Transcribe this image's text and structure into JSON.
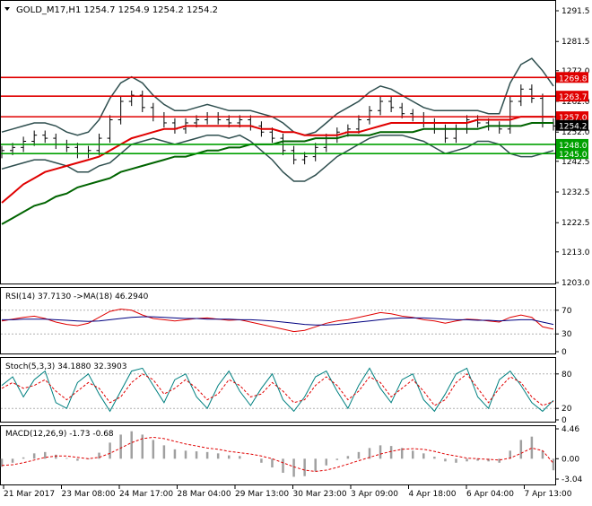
{
  "header": {
    "symbol_line": "GOLD_M17,H1  1254.7 1254.9 1254.2 1254.2"
  },
  "colors": {
    "price_bars": "#000000",
    "bollinger": "#2f4f4f",
    "ma_red": "#e00000",
    "ma_green": "#006400",
    "level_red": "#e00000",
    "level_green": "#00a000",
    "rsi_line": "#e00000",
    "rsi_ma": "#000080",
    "stoch_main": "#008080",
    "stoch_signal": "#e00000",
    "macd_hist": "#a0a0a0",
    "macd_signal": "#e00000"
  },
  "chart_data": [
    {
      "type": "line",
      "name": "main",
      "y_ticks": [
        "1291.5",
        "1281.5",
        "1272.0",
        "1262.0",
        "1252.0",
        "1242.5",
        "1232.5",
        "1222.5",
        "1213.0",
        "1203.0"
      ],
      "ylim": [
        1203.0,
        1291.5
      ],
      "x_labels": [
        "21 Mar 2017",
        "23 Mar 08:00",
        "24 Mar 17:00",
        "28 Mar 04:00",
        "29 Mar 13:00",
        "30 Mar 23:00",
        "3 Apr 09:00",
        "4 Apr 18:00",
        "6 Apr 04:00",
        "7 Apr 13:00"
      ],
      "levels": [
        {
          "label": "1269.8",
          "value": 1269.8,
          "color": "red"
        },
        {
          "label": "1263.7",
          "value": 1263.7,
          "color": "red"
        },
        {
          "label": "1257.0",
          "value": 1257.0,
          "color": "red"
        },
        {
          "label": "1248.0",
          "value": 1248.0,
          "color": "green"
        },
        {
          "label": "1245.0",
          "value": 1245.0,
          "color": "green"
        }
      ],
      "current_price": {
        "label": "1254.2",
        "value": 1254.2
      },
      "price_close": [
        1246,
        1247,
        1249,
        1251,
        1250,
        1248,
        1247,
        1245,
        1246,
        1250,
        1256,
        1262,
        1264,
        1260,
        1257,
        1255,
        1253,
        1255,
        1256,
        1257,
        1256,
        1255,
        1256,
        1254,
        1252,
        1250,
        1246,
        1243,
        1244,
        1247,
        1250,
        1252,
        1253,
        1256,
        1259,
        1262,
        1260,
        1258,
        1257,
        1255,
        1253,
        1250,
        1253,
        1256,
        1255,
        1254,
        1253,
        1262,
        1266,
        1263,
        1255,
        1254
      ],
      "ma_red": [
        1229,
        1232,
        1235,
        1237,
        1239,
        1240,
        1241,
        1242,
        1243,
        1244,
        1246,
        1248,
        1250,
        1251,
        1252,
        1253,
        1253,
        1254,
        1254,
        1254,
        1254,
        1254,
        1254,
        1254,
        1253,
        1253,
        1252,
        1252,
        1251,
        1251,
        1251,
        1251,
        1252,
        1252,
        1253,
        1254,
        1255,
        1255,
        1255,
        1255,
        1255,
        1255,
        1255,
        1255,
        1256,
        1256,
        1256,
        1256,
        1257,
        1257,
        1257,
        1257
      ],
      "ma_green": [
        1222,
        1224,
        1226,
        1228,
        1229,
        1231,
        1232,
        1234,
        1235,
        1236,
        1237,
        1239,
        1240,
        1241,
        1242,
        1243,
        1244,
        1244,
        1245,
        1246,
        1246,
        1247,
        1247,
        1248,
        1248,
        1248,
        1249,
        1249,
        1249,
        1250,
        1250,
        1250,
        1251,
        1251,
        1251,
        1252,
        1252,
        1252,
        1252,
        1253,
        1253,
        1253,
        1253,
        1253,
        1253,
        1254,
        1254,
        1254,
        1254,
        1255,
        1255,
        1255
      ],
      "bb_upper": [
        1252,
        1253,
        1254,
        1255,
        1255,
        1254,
        1252,
        1251,
        1252,
        1256,
        1263,
        1268,
        1270,
        1268,
        1264,
        1261,
        1259,
        1259,
        1260,
        1261,
        1260,
        1259,
        1259,
        1259,
        1258,
        1257,
        1255,
        1252,
        1251,
        1252,
        1255,
        1258,
        1260,
        1262,
        1265,
        1267,
        1266,
        1264,
        1262,
        1260,
        1259,
        1259,
        1259,
        1259,
        1259,
        1258,
        1258,
        1268,
        1274,
        1276,
        1272,
        1267
      ],
      "bb_lower": [
        1240,
        1241,
        1242,
        1243,
        1243,
        1242,
        1241,
        1239,
        1239,
        1241,
        1242,
        1245,
        1248,
        1249,
        1250,
        1249,
        1248,
        1249,
        1250,
        1251,
        1251,
        1250,
        1251,
        1249,
        1246,
        1243,
        1239,
        1236,
        1236,
        1238,
        1241,
        1244,
        1246,
        1248,
        1250,
        1251,
        1251,
        1251,
        1250,
        1249,
        1247,
        1245,
        1246,
        1247,
        1249,
        1249,
        1248,
        1245,
        1244,
        1244,
        1245,
        1246
      ]
    },
    {
      "type": "line",
      "name": "RSI",
      "label": "RSI(14) 37.7130  ->MA(18) 46.2940",
      "ylim": [
        0,
        100
      ],
      "y_ticks": [
        "70",
        "30",
        "0"
      ],
      "levels": [
        70,
        30
      ],
      "rsi": [
        52,
        55,
        58,
        60,
        56,
        50,
        46,
        44,
        48,
        58,
        68,
        72,
        70,
        62,
        56,
        54,
        52,
        54,
        56,
        57,
        55,
        53,
        54,
        50,
        46,
        42,
        38,
        34,
        36,
        42,
        48,
        52,
        54,
        58,
        62,
        66,
        64,
        60,
        58,
        54,
        52,
        48,
        52,
        55,
        54,
        52,
        50,
        58,
        62,
        58,
        42,
        38
      ],
      "rsi_ma": [
        54,
        54,
        55,
        55,
        55,
        54,
        53,
        52,
        51,
        52,
        54,
        56,
        58,
        59,
        59,
        58,
        57,
        56,
        56,
        55,
        55,
        55,
        54,
        54,
        53,
        52,
        50,
        48,
        46,
        45,
        45,
        46,
        48,
        50,
        52,
        54,
        56,
        57,
        57,
        57,
        56,
        55,
        54,
        54,
        53,
        53,
        52,
        53,
        54,
        54,
        50,
        46
      ]
    },
    {
      "type": "line",
      "name": "Stochastic",
      "label": "Stoch(5,3,3) 34.1880 32.3903",
      "ylim": [
        0,
        100
      ],
      "y_ticks": [
        "80",
        "20",
        "0"
      ],
      "levels": [
        80,
        20
      ],
      "main": [
        60,
        75,
        40,
        70,
        85,
        30,
        20,
        65,
        80,
        45,
        15,
        50,
        85,
        90,
        60,
        30,
        70,
        80,
        40,
        20,
        60,
        85,
        50,
        25,
        55,
        80,
        35,
        15,
        40,
        75,
        85,
        50,
        20,
        60,
        90,
        55,
        30,
        70,
        80,
        35,
        15,
        45,
        80,
        90,
        40,
        20,
        70,
        85,
        60,
        30,
        15,
        34
      ],
      "signal": [
        55,
        65,
        55,
        60,
        70,
        50,
        35,
        50,
        65,
        55,
        30,
        40,
        65,
        80,
        70,
        45,
        55,
        70,
        55,
        35,
        45,
        70,
        60,
        40,
        45,
        65,
        50,
        30,
        35,
        60,
        75,
        60,
        35,
        50,
        75,
        65,
        40,
        55,
        70,
        50,
        25,
        35,
        65,
        80,
        55,
        30,
        55,
        75,
        65,
        40,
        25,
        32
      ]
    },
    {
      "type": "bar",
      "name": "MACD",
      "label": "MACD(12,26,9) -1.73 -0.68",
      "ylim": [
        -3.04,
        4.46
      ],
      "y_ticks": [
        "4.46",
        "0.00",
        "-3.04"
      ],
      "histogram": [
        -1.2,
        -0.6,
        0.2,
        0.8,
        1.0,
        0.6,
        0.1,
        -0.3,
        -0.1,
        0.9,
        2.4,
        3.6,
        4.1,
        3.6,
        2.8,
        2.0,
        1.4,
        1.2,
        1.1,
        1.0,
        0.8,
        0.5,
        0.4,
        0.0,
        -0.6,
        -1.3,
        -2.1,
        -2.7,
        -2.6,
        -1.9,
        -1.0,
        -0.2,
        0.4,
        1.0,
        1.6,
        2.0,
        1.9,
        1.6,
        1.2,
        0.8,
        0.3,
        -0.4,
        -0.6,
        -0.4,
        -0.3,
        -0.4,
        -0.6,
        1.2,
        2.8,
        3.3,
        1.2,
        -1.73
      ],
      "signal": [
        -1.0,
        -0.9,
        -0.6,
        -0.2,
        0.2,
        0.4,
        0.4,
        0.2,
        0.0,
        0.2,
        0.8,
        1.6,
        2.4,
        3.0,
        3.2,
        3.0,
        2.6,
        2.2,
        1.9,
        1.6,
        1.4,
        1.1,
        0.9,
        0.7,
        0.4,
        0.0,
        -0.6,
        -1.2,
        -1.7,
        -1.9,
        -1.7,
        -1.3,
        -0.8,
        -0.3,
        0.2,
        0.7,
        1.1,
        1.4,
        1.5,
        1.4,
        1.1,
        0.7,
        0.4,
        0.1,
        0.0,
        -0.1,
        -0.2,
        0.1,
        0.8,
        1.6,
        1.2,
        -0.68
      ]
    }
  ]
}
